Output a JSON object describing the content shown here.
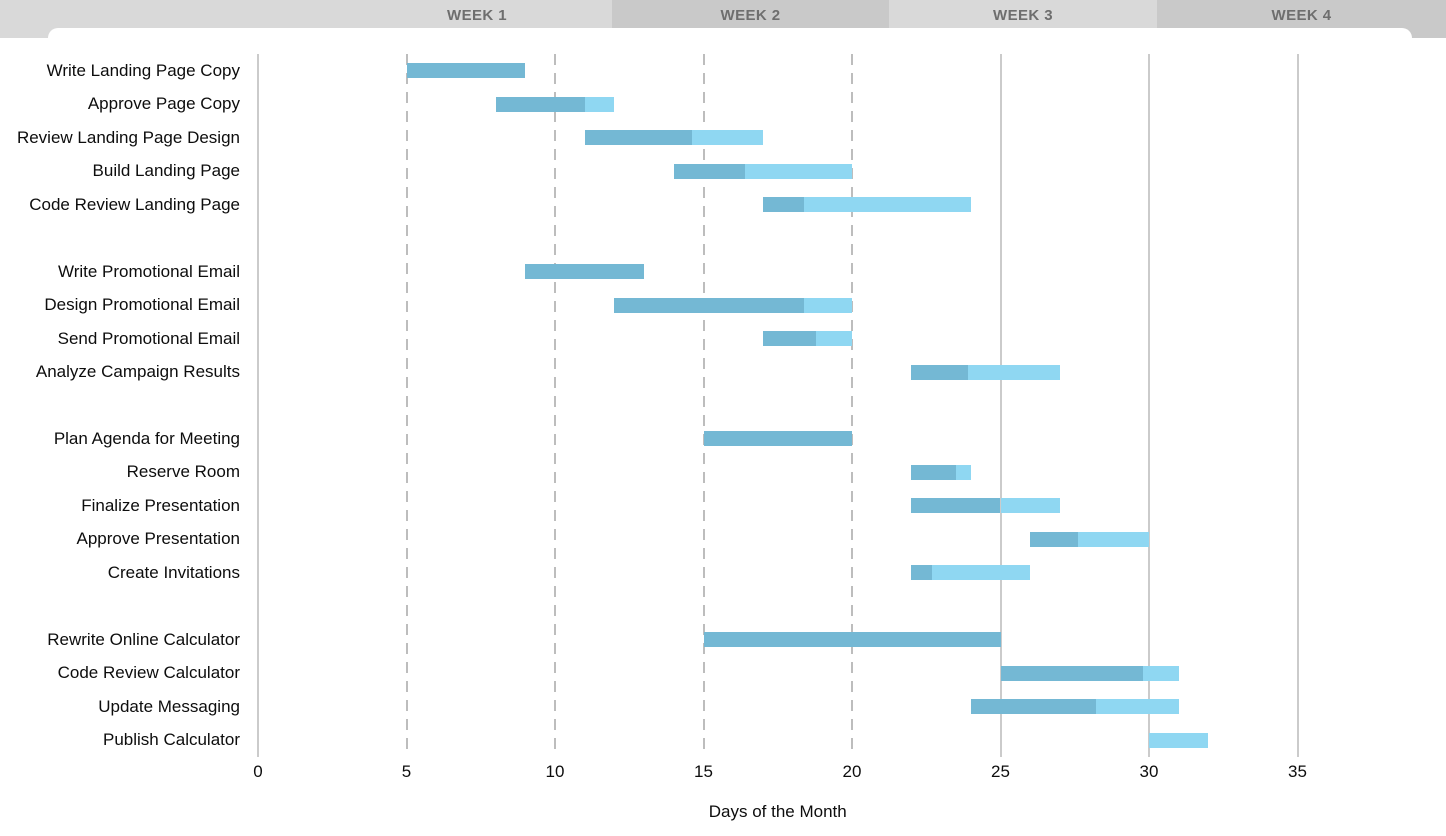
{
  "week_header": {
    "labels": [
      "WEEK 1",
      "WEEK 2",
      "WEEK 3",
      "WEEK 4"
    ],
    "band_light_color": "#d9d9d9",
    "band_dark_color": "#c9c9c9",
    "text_color": "#6e6e6e"
  },
  "chart_data": {
    "type": "bar",
    "subtype": "gantt",
    "title": "",
    "xlabel": "Days of the Month",
    "ylabel": "",
    "x_ticks": [
      0,
      5,
      10,
      15,
      20,
      25,
      30,
      35
    ],
    "x_range": [
      0,
      40
    ],
    "grid": {
      "dashed_at": [
        5,
        10,
        15,
        20
      ],
      "solid_at": [
        0,
        25,
        30,
        35
      ],
      "dashed_color": "#bdbdbd",
      "solid_color": "#cbcbcb"
    },
    "legend": null,
    "colors": {
      "complete": "#74b8d4",
      "remaining": "#8fd7f2"
    },
    "task_groups": [
      [
        {
          "label": "Write Landing Page Copy",
          "start": 5,
          "end": 9,
          "complete_until": 9
        },
        {
          "label": "Approve Page Copy",
          "start": 8,
          "end": 12,
          "complete_until": 11
        },
        {
          "label": "Review Landing Page Design",
          "start": 11,
          "end": 17,
          "complete_until": 14.6
        },
        {
          "label": "Build Landing Page",
          "start": 14,
          "end": 20,
          "complete_until": 16.4
        },
        {
          "label": "Code Review Landing Page",
          "start": 17,
          "end": 24,
          "complete_until": 18.4
        }
      ],
      [
        {
          "label": "Write Promotional Email",
          "start": 9,
          "end": 13,
          "complete_until": 13
        },
        {
          "label": "Design Promotional Email",
          "start": 12,
          "end": 20,
          "complete_until": 18.4
        },
        {
          "label": "Send Promotional Email",
          "start": 17,
          "end": 20,
          "complete_until": 18.8
        },
        {
          "label": "Analyze Campaign Results",
          "start": 22,
          "end": 27,
          "complete_until": 23.9
        }
      ],
      [
        {
          "label": "Plan Agenda for Meeting",
          "start": 15,
          "end": 20,
          "complete_until": 20
        },
        {
          "label": "Reserve Room",
          "start": 22,
          "end": 24,
          "complete_until": 23.5
        },
        {
          "label": "Finalize Presentation",
          "start": 22,
          "end": 27,
          "complete_until": 25
        },
        {
          "label": "Approve Presentation",
          "start": 26,
          "end": 30,
          "complete_until": 27.6
        },
        {
          "label": "Create Invitations",
          "start": 22,
          "end": 26,
          "complete_until": 22.7
        }
      ],
      [
        {
          "label": "Rewrite Online Calculator",
          "start": 15,
          "end": 25,
          "complete_until": 25
        },
        {
          "label": "Code Review Calculator",
          "start": 25,
          "end": 31,
          "complete_until": 29.8
        },
        {
          "label": "Update Messaging",
          "start": 24,
          "end": 31,
          "complete_until": 28.2
        },
        {
          "label": "Publish Calculator",
          "start": 30,
          "end": 32,
          "complete_until": 30
        }
      ]
    ]
  }
}
